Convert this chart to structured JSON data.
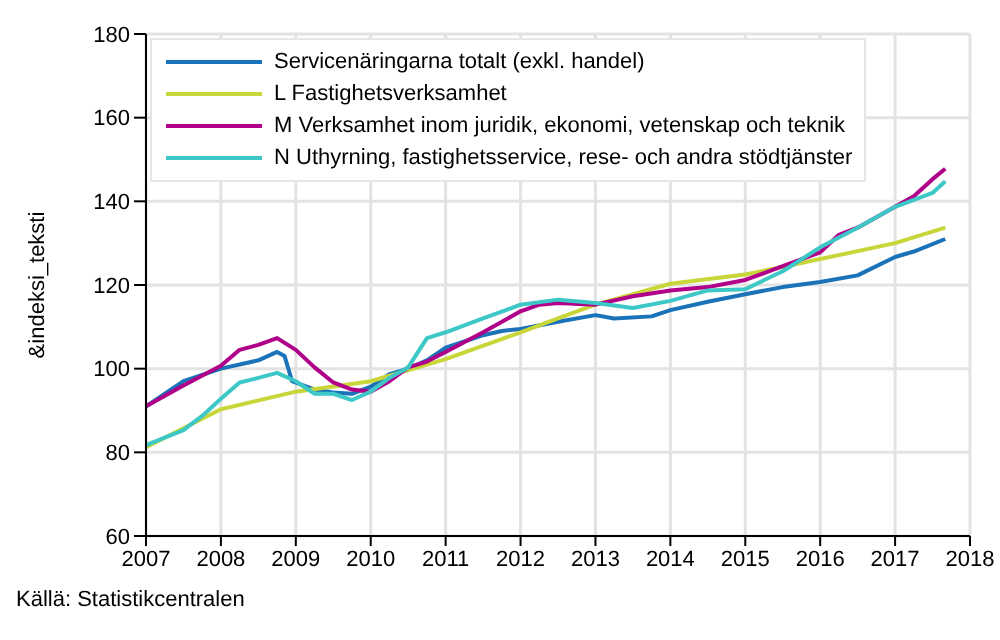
{
  "chart_data": {
    "type": "line",
    "ylabel": "&indeksi_teksti",
    "xlim": [
      2007,
      2018
    ],
    "xticks": [
      2007,
      2008,
      2009,
      2010,
      2011,
      2012,
      2013,
      2014,
      2015,
      2016,
      2017,
      2018
    ],
    "ylim": [
      60,
      180
    ],
    "yticks": [
      60,
      80,
      100,
      120,
      140,
      160,
      180
    ],
    "grid": true,
    "legend": "top left",
    "marker": "none",
    "line_style": "solid",
    "annotations": [
      "Källä: Statistikcentralen"
    ],
    "series": [
      {
        "name": "Servicenäringarna totalt (exkl. handel)",
        "color": "#1a72b8",
        "x": [
          2007,
          2007.5,
          2008,
          2008.5,
          2008.75,
          2008.85,
          2008.95,
          2009.25,
          2009.5,
          2009.75,
          2010,
          2010.25,
          2010.5,
          2010.75,
          2011,
          2011.5,
          2011.75,
          2012,
          2012.5,
          2013,
          2013.25,
          2013.75,
          2014,
          2014.5,
          2015,
          2015.5,
          2016,
          2016.5,
          2017,
          2017.25,
          2017.67
        ],
        "values": [
          91,
          97,
          100,
          102,
          104,
          103,
          97,
          95,
          94.3,
          94,
          95.7,
          98.7,
          100,
          102,
          105,
          108,
          109,
          109.5,
          111.2,
          112.8,
          112,
          112.5,
          114,
          116,
          117.8,
          119.5,
          120.7,
          122.3,
          126.7,
          128,
          131
        ]
      },
      {
        "name": "L Fastighetsverksamhet",
        "color": "#c8d63a",
        "x": [
          2007,
          2008,
          2009,
          2010,
          2011,
          2012,
          2012.5,
          2013,
          2014,
          2015,
          2016,
          2017,
          2017.67
        ],
        "values": [
          81.2,
          90.3,
          94.5,
          97,
          102.3,
          108.7,
          112,
          115.3,
          120.3,
          122.5,
          126.2,
          130,
          133.7
        ]
      },
      {
        "name": "M Verksamhet inom juridik, ekonomi, vetenskap och teknik",
        "color": "#b0008a",
        "x": [
          2007,
          2007.5,
          2008,
          2008.25,
          2008.5,
          2008.75,
          2009,
          2009.25,
          2009.5,
          2009.75,
          2010,
          2010.25,
          2010.5,
          2010.75,
          2011,
          2011.5,
          2012,
          2012.25,
          2012.5,
          2013,
          2013.5,
          2014,
          2014.5,
          2015,
          2015.5,
          2016,
          2016.25,
          2016.5,
          2017,
          2017.25,
          2017.5,
          2017.67
        ],
        "values": [
          91,
          96,
          100.7,
          104.5,
          105.7,
          107.3,
          104.5,
          100.3,
          96.7,
          95,
          94.5,
          97,
          100.3,
          101.7,
          104,
          108.7,
          113.7,
          115.3,
          115.7,
          115.3,
          117.3,
          118.7,
          119.5,
          121.2,
          124.5,
          127.8,
          132,
          133.7,
          138.7,
          141.2,
          145.3,
          147.8
        ]
      },
      {
        "name": "N Uthyrning, fastighetsservice, rese- och andra stödtjänster",
        "color": "#3dc7c7",
        "x": [
          2007,
          2007.5,
          2007.75,
          2008,
          2008.25,
          2008.5,
          2008.75,
          2009,
          2009.25,
          2009.5,
          2009.75,
          2010,
          2010.25,
          2010.5,
          2010.75,
          2011,
          2011.5,
          2012,
          2012.5,
          2013,
          2013.5,
          2014,
          2014.5,
          2015,
          2015.5,
          2016,
          2016.5,
          2017,
          2017.5,
          2017.67
        ],
        "values": [
          81.7,
          85.3,
          88.7,
          92.8,
          96.7,
          97.8,
          99,
          97,
          94,
          94,
          92.5,
          94.5,
          97.8,
          100.3,
          107.3,
          108.7,
          112,
          115.3,
          116.5,
          115.7,
          114.5,
          116.2,
          118.7,
          119,
          123.3,
          129,
          133.7,
          138.7,
          142,
          144.8
        ]
      }
    ]
  }
}
